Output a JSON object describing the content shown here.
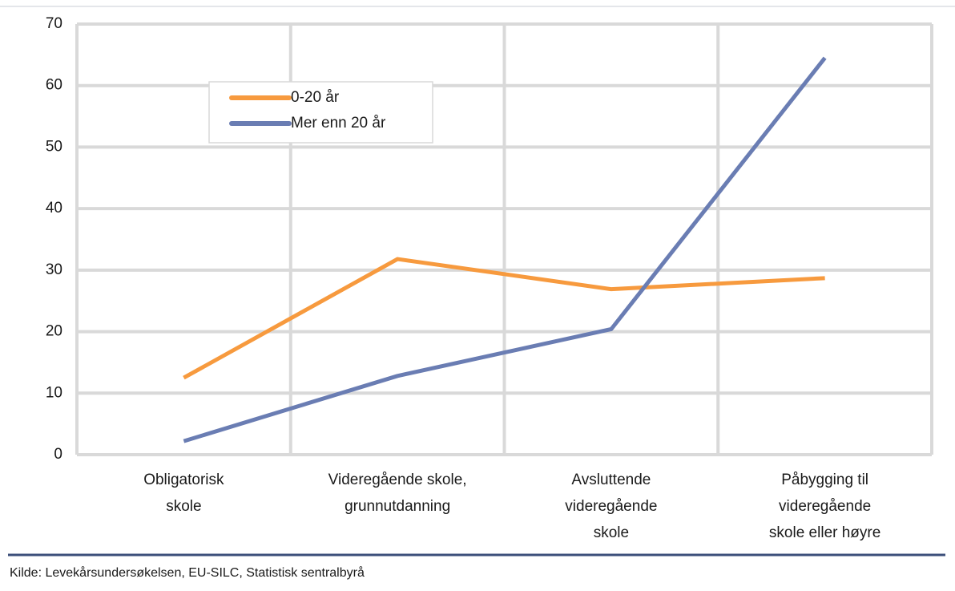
{
  "chart_data": {
    "type": "line",
    "categories": [
      [
        "Obligatorisk",
        "skole"
      ],
      [
        "Videregående skole,",
        "grunnutdanning"
      ],
      [
        "Avsluttende",
        "videregående",
        "skole"
      ],
      [
        "Påbygging til",
        "videregående",
        "skole eller høyre"
      ]
    ],
    "series": [
      {
        "name": "0-20 år",
        "color": "#f79a3e",
        "values": [
          12.5,
          31.8,
          26.9,
          28.7
        ]
      },
      {
        "name": "Mer enn 20 år",
        "color": "#6a7db3",
        "values": [
          2.2,
          12.8,
          20.4,
          64.5
        ]
      }
    ],
    "ylim": [
      0,
      70
    ],
    "yticks": [
      0,
      10,
      20,
      30,
      40,
      50,
      60,
      70
    ],
    "grid": true,
    "legend": "upper left",
    "source": "Kilde: Levekårsundersøkelsen, EU-SILC, Statistisk sentralbyrå"
  }
}
